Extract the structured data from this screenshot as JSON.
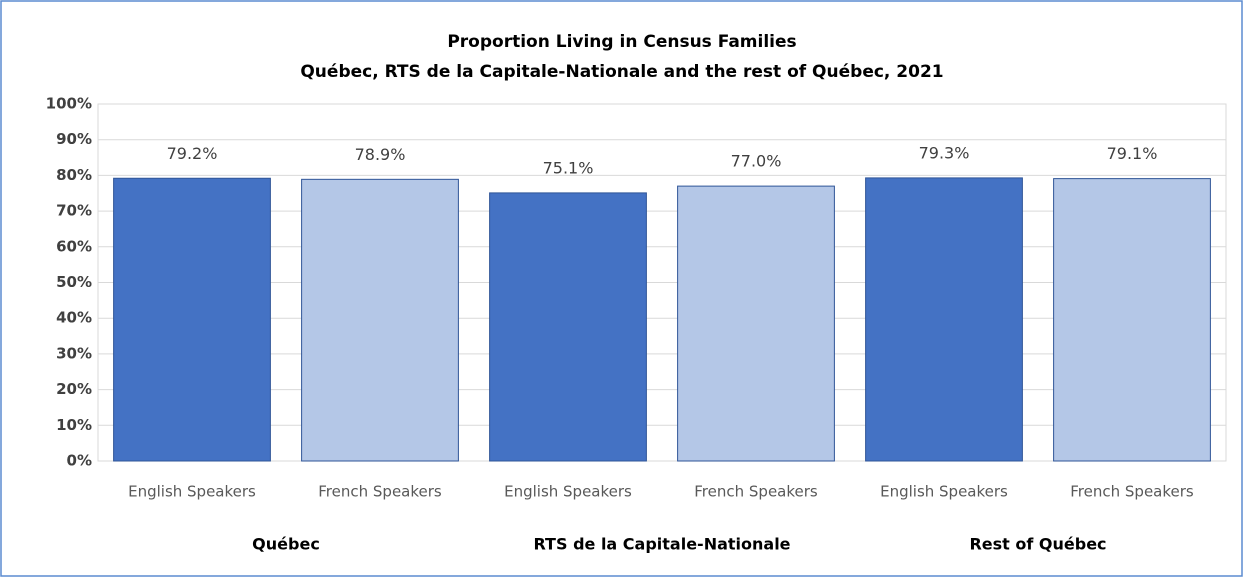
{
  "chart_data": {
    "type": "bar",
    "title": "Proportion Living in Census Families",
    "subtitle": "Québec, RTS de la Capitale-Nationale  and the rest of Québec, 2021",
    "categories": [
      "English Speakers",
      "French Speakers",
      "English Speakers",
      "French Speakers",
      "English Speakers",
      "French Speakers"
    ],
    "groups": [
      "Québec",
      "RTS de la Capitale-Nationale",
      "Rest of Québec"
    ],
    "values": [
      79.2,
      78.9,
      75.1,
      77.0,
      79.3,
      79.1
    ],
    "value_labels": [
      "79.2%",
      "78.9%",
      "75.1%",
      "77.0%",
      "79.3%",
      "79.1%"
    ],
    "colors": [
      "#4472c4",
      "#b4c7e7",
      "#4472c4",
      "#b4c7e7",
      "#4472c4",
      "#b4c7e7"
    ],
    "ylim": [
      0,
      100
    ],
    "yticks": [
      {
        "value": 0,
        "label": "0%"
      },
      {
        "value": 10,
        "label": "10%"
      },
      {
        "value": 20,
        "label": "20%"
      },
      {
        "value": 30,
        "label": "30%"
      },
      {
        "value": 40,
        "label": "40%"
      },
      {
        "value": 50,
        "label": "50%"
      },
      {
        "value": 60,
        "label": "60%"
      },
      {
        "value": 70,
        "label": "70%"
      },
      {
        "value": 80,
        "label": "80%"
      },
      {
        "value": 90,
        "label": "90%"
      },
      {
        "value": 100,
        "label": "100%"
      }
    ],
    "grid": true
  }
}
